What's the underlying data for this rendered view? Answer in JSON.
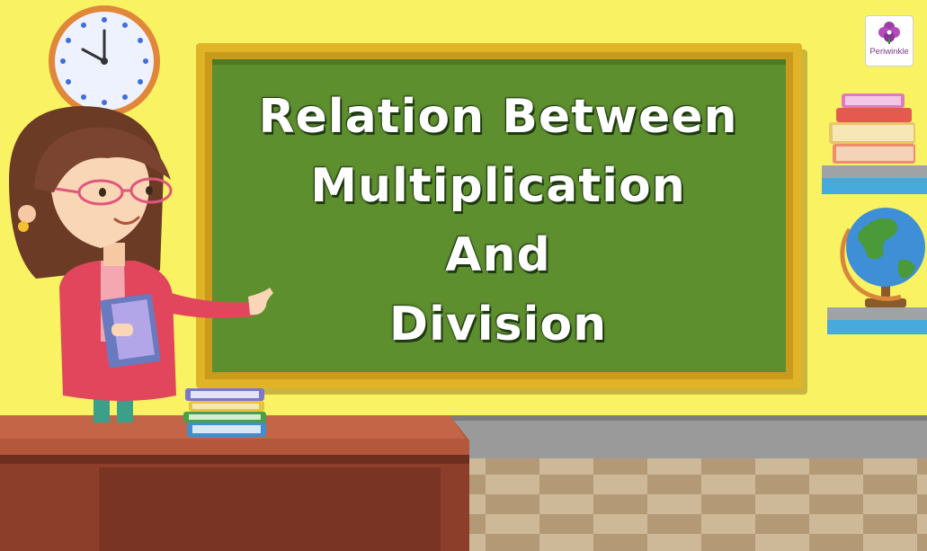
{
  "board": {
    "lines": [
      "Relation Between",
      "Multiplication",
      "And",
      "Division"
    ]
  },
  "logo": {
    "text": "Periwinkle",
    "icon": "flower-icon"
  },
  "colors": {
    "wall": "#f9f363",
    "board_frame": "#e1b428",
    "board_green": "#5e8f2e",
    "floor_light": "#dcc9a6",
    "floor_dark": "#b89d7a",
    "desk": "#a44d35"
  }
}
